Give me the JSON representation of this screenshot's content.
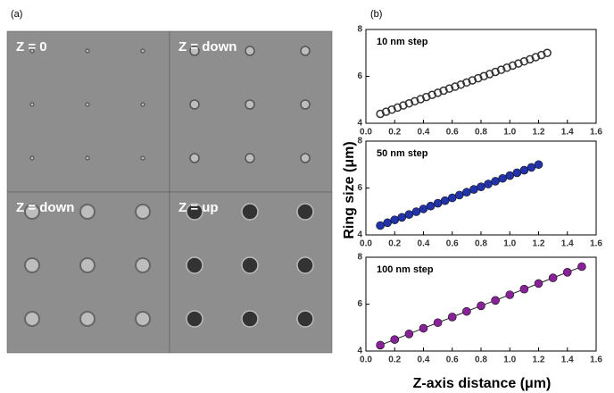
{
  "figure": {
    "panel_labels": [
      "(a)",
      "(b)"
    ],
    "image_labels": [
      "Z = 0",
      "Z = down",
      "Z = down",
      "Z = up"
    ],
    "y_label": "Ring size (μm)",
    "x_label": "Z-axis distance (μm)"
  },
  "chart_data": [
    {
      "type": "scatter",
      "annotation": "10 nm step",
      "color": "#333333",
      "x": [
        0.1,
        0.14,
        0.18,
        0.22,
        0.26,
        0.3,
        0.34,
        0.38,
        0.42,
        0.46,
        0.5,
        0.54,
        0.58,
        0.62,
        0.66,
        0.7,
        0.74,
        0.78,
        0.82,
        0.86,
        0.9,
        0.94,
        0.98,
        1.02,
        1.06,
        1.1,
        1.14,
        1.18,
        1.22,
        1.26
      ],
      "values": [
        4.4,
        4.49,
        4.58,
        4.67,
        4.76,
        4.85,
        4.94,
        5.03,
        5.12,
        5.21,
        5.3,
        5.39,
        5.48,
        5.56,
        5.65,
        5.74,
        5.83,
        5.92,
        6.01,
        6.1,
        6.19,
        6.28,
        6.37,
        6.46,
        6.55,
        6.64,
        6.73,
        6.82,
        6.91,
        7.0
      ],
      "xlim": [
        0,
        1.6
      ],
      "xticks": [
        {
          "value": 0,
          "label": "0.0"
        },
        0.2,
        0.4,
        0.6,
        0.8,
        {
          "value": 1,
          "label": "1.0"
        },
        1.2,
        1.4,
        1.6
      ],
      "ylim": [
        4,
        8
      ],
      "yticks": [
        4,
        6,
        8
      ]
    },
    {
      "type": "scatter",
      "annotation": "50 nm step",
      "color": "#2233aa",
      "x": [
        0.1,
        0.15,
        0.2,
        0.25,
        0.3,
        0.35,
        0.4,
        0.45,
        0.5,
        0.55,
        0.6,
        0.65,
        0.7,
        0.75,
        0.8,
        0.85,
        0.9,
        0.95,
        1.0,
        1.05,
        1.1,
        1.15,
        1.2
      ],
      "values": [
        4.4,
        4.52,
        4.64,
        4.75,
        4.87,
        4.99,
        5.11,
        5.23,
        5.35,
        5.46,
        5.58,
        5.7,
        5.82,
        5.94,
        6.05,
        6.17,
        6.29,
        6.41,
        6.53,
        6.65,
        6.76,
        6.88,
        7.0
      ],
      "xlim": [
        0,
        1.6
      ],
      "xticks": [
        {
          "value": 0,
          "label": "0.0"
        },
        0.2,
        0.4,
        0.6,
        0.8,
        {
          "value": 1,
          "label": "1.0"
        },
        1.2,
        1.4,
        1.6
      ],
      "ylim": [
        4,
        8
      ],
      "yticks": [
        4,
        6,
        8
      ]
    },
    {
      "type": "line",
      "annotation": "100 nm step",
      "color": "#882299",
      "x": [
        0.1,
        0.2,
        0.3,
        0.4,
        0.5,
        0.6,
        0.7,
        0.8,
        0.9,
        1.0,
        1.1,
        1.2,
        1.3,
        1.4,
        1.5
      ],
      "values": [
        4.25,
        4.49,
        4.73,
        4.97,
        5.21,
        5.45,
        5.69,
        5.93,
        6.16,
        6.4,
        6.64,
        6.88,
        7.12,
        7.36,
        7.6
      ],
      "xlim": [
        0,
        1.6
      ],
      "xticks": [
        {
          "value": 0,
          "label": "0.0"
        },
        0.2,
        0.4,
        0.6,
        0.8,
        {
          "value": 1,
          "label": "1.0"
        },
        1.2,
        1.4,
        1.6
      ],
      "ylim": [
        4,
        8
      ],
      "yticks": [
        4,
        6,
        8
      ]
    }
  ]
}
